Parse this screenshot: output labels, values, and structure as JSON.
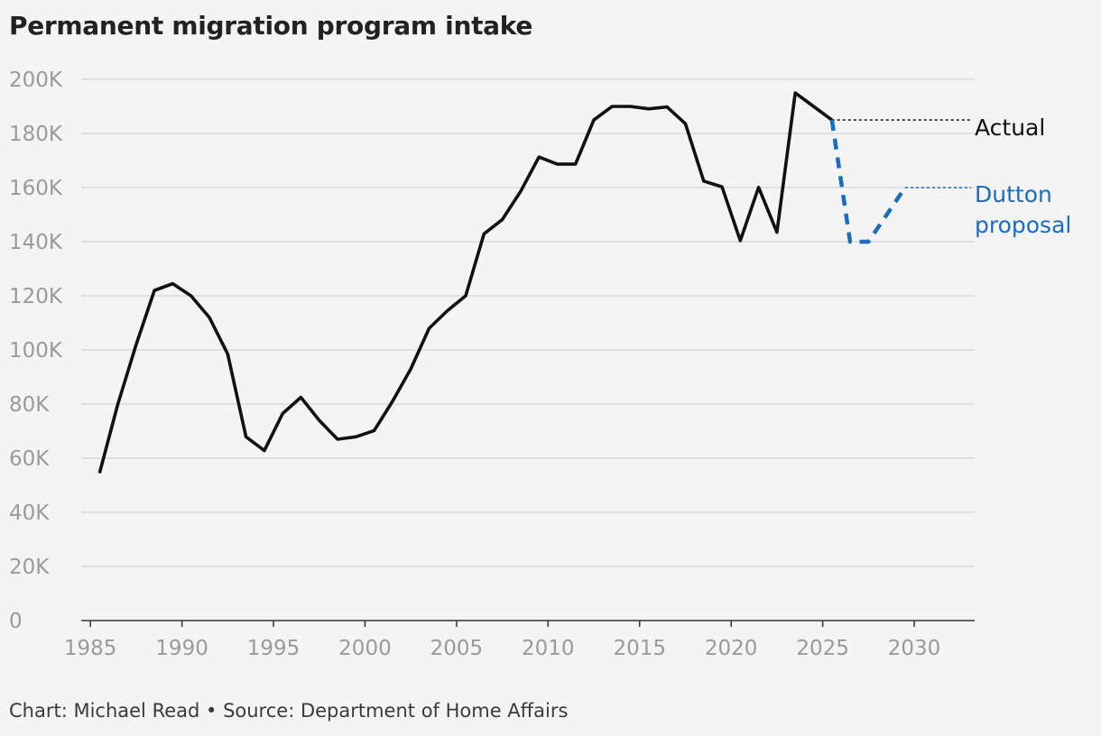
{
  "chart_data": {
    "type": "line",
    "title": "Permanent migration program intake",
    "source": "Chart: Michael Read • Source: Department of Home Affairs",
    "xlim": [
      1984.5,
      2033.3
    ],
    "ylim": [
      0,
      200000
    ],
    "grid": true,
    "x_ticks": [
      {
        "value": 1985,
        "label": "1985"
      },
      {
        "value": 1990,
        "label": "1990"
      },
      {
        "value": 1995,
        "label": "1995"
      },
      {
        "value": 2000,
        "label": "2000"
      },
      {
        "value": 2005,
        "label": "2005"
      },
      {
        "value": 2010,
        "label": "2010"
      },
      {
        "value": 2015,
        "label": "2015"
      },
      {
        "value": 2020,
        "label": "2020"
      },
      {
        "value": 2025,
        "label": "2025"
      },
      {
        "value": 2030,
        "label": "2030"
      }
    ],
    "y_ticks": [
      {
        "value": 0,
        "label": "0"
      },
      {
        "value": 20000,
        "label": "20K"
      },
      {
        "value": 40000,
        "label": "40K"
      },
      {
        "value": 60000,
        "label": "60K"
      },
      {
        "value": 80000,
        "label": "80K"
      },
      {
        "value": 100000,
        "label": "100K"
      },
      {
        "value": 120000,
        "label": "120K"
      },
      {
        "value": 140000,
        "label": "140K"
      },
      {
        "value": 160000,
        "label": "160K"
      },
      {
        "value": 180000,
        "label": "180K"
      },
      {
        "value": 200000,
        "label": "200K"
      }
    ],
    "series": [
      {
        "name": "Actual",
        "color": "#111111",
        "style": "solid",
        "x": [
          1985.5,
          1986.5,
          1987.5,
          1988.5,
          1989.5,
          1990.5,
          1991.5,
          1992.5,
          1993.5,
          1994.5,
          1995.5,
          1996.5,
          1997.5,
          1998.5,
          1999.5,
          2000.5,
          2001.5,
          2002.5,
          2003.5,
          2004.5,
          2005.5,
          2006.5,
          2007.5,
          2008.5,
          2009.5,
          2010.5,
          2011.5,
          2012.5,
          2013.5,
          2014.5,
          2015.5,
          2016.5,
          2017.5,
          2018.5,
          2019.5,
          2020.5,
          2021.5,
          2022.5,
          2023.5,
          2024.5,
          2025.5
        ],
        "y": [
          54500,
          80000,
          102000,
          122000,
          124500,
          120000,
          112000,
          98500,
          67900,
          62800,
          76500,
          82500,
          74000,
          67000,
          67900,
          70200,
          81000,
          93000,
          108000,
          114500,
          120000,
          142900,
          148200,
          158600,
          171300,
          168700,
          168700,
          185000,
          190000,
          190000,
          189100,
          189800,
          183600,
          162400,
          160300,
          140400,
          160100,
          143500,
          195000,
          190000,
          185000
        ],
        "end_label": "Actual",
        "end_value": 185000
      },
      {
        "name": "Dutton proposal",
        "color": "#1a6bc2",
        "style": "dashed",
        "x": [
          2025.5,
          2026.5,
          2027.5,
          2028.5,
          2029.5
        ],
        "y": [
          185000,
          140000,
          140000,
          150000,
          160000
        ],
        "end_label": "Dutton proposal",
        "end_label_lines": [
          "Dutton",
          "proposal"
        ],
        "end_value": 160000
      }
    ]
  }
}
